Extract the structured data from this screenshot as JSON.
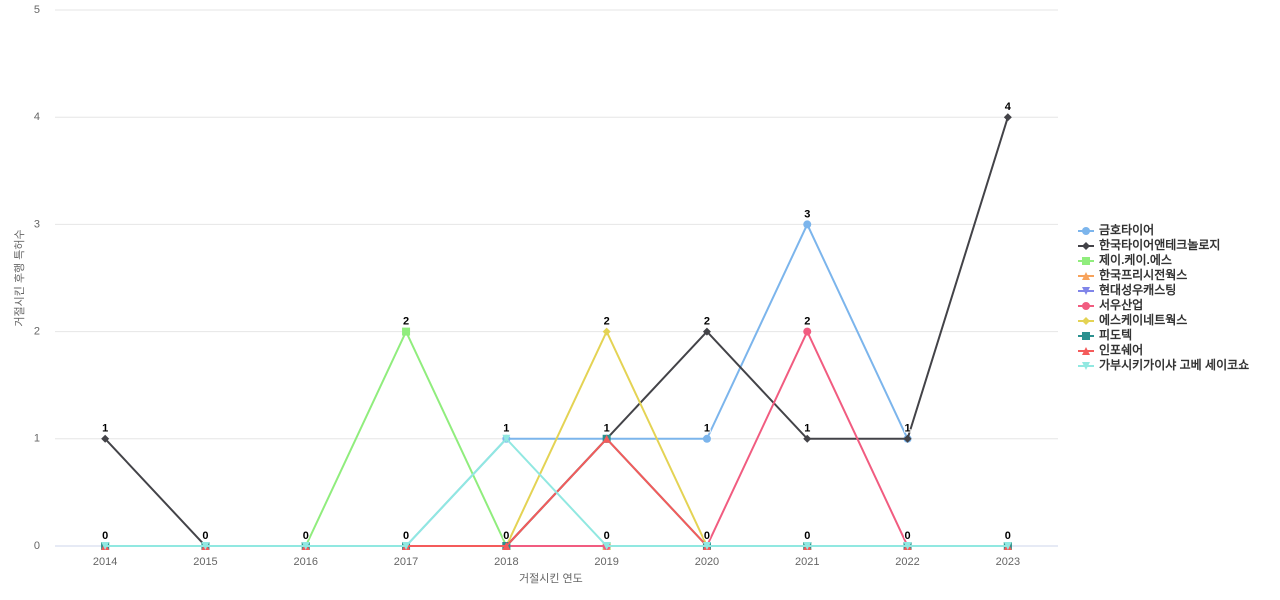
{
  "chart_data": {
    "type": "line",
    "x_label": "거절시킨 연도",
    "y_label": "거절시킨 후행 특허수",
    "categories": [
      "2014",
      "2015",
      "2016",
      "2017",
      "2018",
      "2019",
      "2020",
      "2021",
      "2022",
      "2023"
    ],
    "ylim": [
      0,
      5
    ],
    "yticks": [
      0,
      1,
      2,
      3,
      4,
      5
    ],
    "grid": true,
    "legend": "right",
    "series": [
      {
        "name": "금호타이어",
        "color": "#7cb5ec",
        "marker": "circle",
        "values": [
          0,
          0,
          0,
          0,
          1,
          1,
          1,
          3,
          1,
          null
        ]
      },
      {
        "name": "한국타이어앤테크놀로지",
        "color": "#434348",
        "marker": "diamond",
        "values": [
          1,
          0,
          0,
          0,
          0,
          1,
          2,
          1,
          1,
          4
        ]
      },
      {
        "name": "제이.케이.에스",
        "color": "#90ed7d",
        "marker": "square",
        "values": [
          0,
          0,
          0,
          2,
          0,
          0,
          0,
          0,
          0,
          0
        ]
      },
      {
        "name": "한국프리시전웍스",
        "color": "#f7a35c",
        "marker": "triangle",
        "values": [
          0,
          0,
          0,
          0,
          0,
          0,
          0,
          0,
          0,
          0
        ]
      },
      {
        "name": "현대성우캐스팅",
        "color": "#8085e9",
        "marker": "triangle-down",
        "values": [
          0,
          0,
          0,
          0,
          0,
          0,
          0,
          0,
          0,
          0
        ]
      },
      {
        "name": "서우산업",
        "color": "#f15c80",
        "marker": "circle",
        "values": [
          0,
          0,
          0,
          0,
          0,
          0,
          0,
          2,
          0,
          0
        ]
      },
      {
        "name": "에스케이네트웍스",
        "color": "#e4d354",
        "marker": "diamond",
        "values": [
          0,
          0,
          0,
          0,
          0,
          2,
          0,
          0,
          0,
          0
        ]
      },
      {
        "name": "피도텍",
        "color": "#2b908f",
        "marker": "square",
        "values": [
          0,
          0,
          0,
          0,
          0,
          1,
          0,
          0,
          0,
          0
        ]
      },
      {
        "name": "인포쉐어",
        "color": "#f45b5b",
        "marker": "triangle",
        "values": [
          0,
          0,
          0,
          0,
          0,
          1,
          0,
          0,
          0,
          0
        ]
      },
      {
        "name": "가부시키가이샤 고베 세이코쇼",
        "color": "#91e8e1",
        "marker": "triangle-down",
        "values": [
          0,
          0,
          0,
          0,
          1,
          0,
          0,
          0,
          0,
          0
        ]
      }
    ]
  }
}
